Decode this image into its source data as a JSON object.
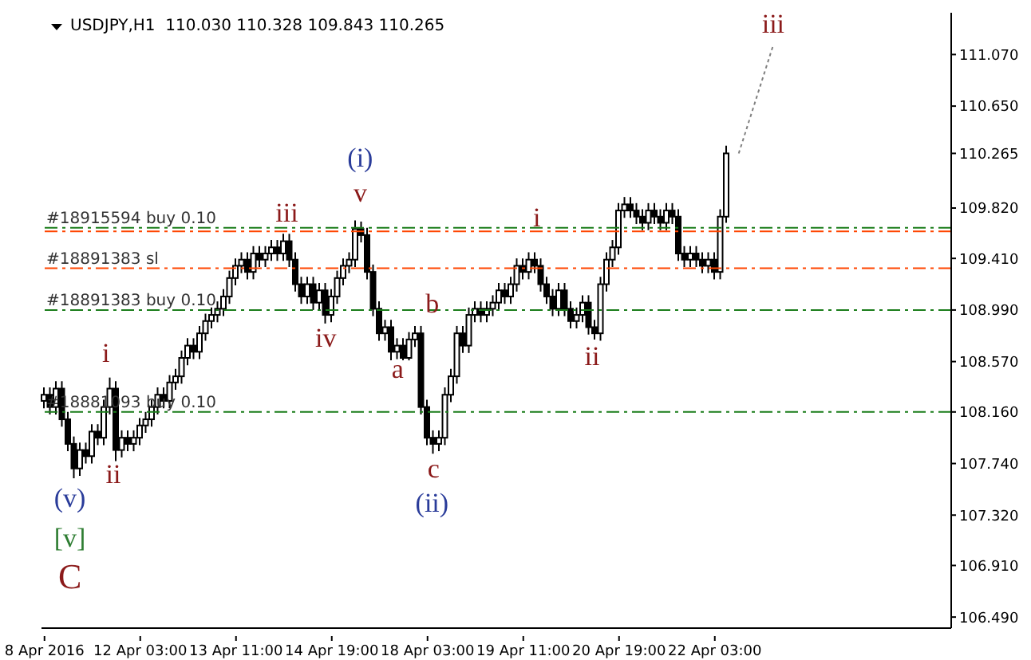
{
  "chart_data": {
    "type": "candlestick",
    "title": "USDJPY,H1  110.030 110.328 109.843 110.265",
    "color": "#000000",
    "categories": [
      "8 Apr 2016",
      null,
      null,
      null,
      null,
      null,
      null,
      null,
      null,
      null,
      null,
      null,
      null,
      null,
      null,
      null,
      "12 Apr 03:00",
      null,
      null,
      null,
      null,
      null,
      null,
      null,
      null,
      null,
      null,
      null,
      null,
      null,
      null,
      null,
      "13 Apr 11:00",
      null,
      null,
      null,
      null,
      null,
      null,
      null,
      null,
      null,
      null,
      null,
      null,
      null,
      null,
      null,
      "14 Apr 19:00",
      null,
      null,
      null,
      null,
      null,
      null,
      null,
      null,
      null,
      null,
      null,
      null,
      null,
      null,
      null,
      "18 Apr 03:00",
      null,
      null,
      null,
      null,
      null,
      null,
      null,
      null,
      null,
      null,
      null,
      null,
      null,
      null,
      null,
      "19 Apr 11:00",
      null,
      null,
      null,
      null,
      null,
      null,
      null,
      null,
      null,
      null,
      null,
      null,
      null,
      null,
      null,
      "20 Apr 19:00",
      null,
      null,
      null,
      null,
      null,
      null,
      null,
      null,
      null,
      null,
      null,
      null,
      null,
      null,
      null,
      "22 Apr 03:00",
      null,
      null,
      null,
      null,
      null,
      null,
      null,
      null,
      null,
      null,
      null,
      null,
      null,
      null,
      null,
      null,
      null,
      null,
      null,
      null,
      null,
      null,
      null,
      null,
      null,
      null,
      null,
      null,
      null,
      null,
      null,
      null,
      null,
      null,
      null,
      null,
      null,
      null,
      null
    ],
    "ohlc": [
      [
        108.25,
        108.36,
        108.19,
        108.3
      ],
      [
        108.3,
        108.36,
        108.14,
        108.2
      ],
      [
        108.2,
        108.41,
        108.14,
        108.35
      ],
      [
        108.35,
        108.41,
        108.04,
        108.1
      ],
      [
        108.1,
        108.16,
        107.84,
        107.9
      ],
      [
        107.9,
        107.96,
        107.62,
        107.7
      ],
      [
        107.7,
        107.91,
        107.64,
        107.85
      ],
      [
        107.85,
        107.91,
        107.74,
        107.8
      ],
      [
        107.8,
        108.06,
        107.74,
        108.0
      ],
      [
        108.0,
        108.06,
        107.89,
        107.95
      ],
      [
        107.95,
        108.26,
        107.89,
        108.2
      ],
      [
        108.2,
        108.44,
        108.14,
        108.35
      ],
      [
        108.35,
        108.41,
        107.76,
        107.85
      ],
      [
        107.85,
        108.01,
        107.79,
        107.95
      ],
      [
        107.95,
        108.01,
        107.84,
        107.9
      ],
      [
        107.9,
        108.01,
        107.84,
        107.95
      ],
      [
        107.95,
        108.11,
        107.89,
        108.05
      ],
      [
        108.05,
        108.16,
        107.99,
        108.1
      ],
      [
        108.1,
        108.26,
        108.04,
        108.2
      ],
      [
        108.2,
        108.36,
        108.14,
        108.3
      ],
      [
        108.3,
        108.36,
        108.19,
        108.25
      ],
      [
        108.25,
        108.46,
        108.19,
        108.4
      ],
      [
        108.4,
        108.51,
        108.34,
        108.45
      ],
      [
        108.45,
        108.66,
        108.39,
        108.6
      ],
      [
        108.6,
        108.76,
        108.54,
        108.7
      ],
      [
        108.7,
        108.76,
        108.59,
        108.65
      ],
      [
        108.65,
        108.86,
        108.59,
        108.8
      ],
      [
        108.8,
        108.96,
        108.74,
        108.9
      ],
      [
        108.9,
        109.01,
        108.84,
        108.95
      ],
      [
        108.95,
        109.06,
        108.89,
        109.0
      ],
      [
        109.0,
        109.16,
        108.94,
        109.1
      ],
      [
        109.1,
        109.31,
        109.04,
        109.25
      ],
      [
        109.25,
        109.41,
        109.19,
        109.35
      ],
      [
        109.35,
        109.46,
        109.29,
        109.4
      ],
      [
        109.4,
        109.46,
        109.24,
        109.3
      ],
      [
        109.3,
        109.51,
        109.24,
        109.45
      ],
      [
        109.45,
        109.51,
        109.34,
        109.4
      ],
      [
        109.4,
        109.51,
        109.34,
        109.45
      ],
      [
        109.45,
        109.56,
        109.39,
        109.5
      ],
      [
        109.5,
        109.56,
        109.39,
        109.45
      ],
      [
        109.45,
        109.61,
        109.39,
        109.55
      ],
      [
        109.55,
        109.61,
        109.34,
        109.4
      ],
      [
        109.4,
        109.46,
        109.14,
        109.2
      ],
      [
        109.2,
        109.26,
        109.04,
        109.1
      ],
      [
        109.1,
        109.26,
        109.04,
        109.2
      ],
      [
        109.2,
        109.26,
        108.99,
        109.05
      ],
      [
        109.05,
        109.21,
        108.99,
        109.15
      ],
      [
        109.15,
        109.21,
        108.88,
        108.95
      ],
      [
        108.95,
        109.16,
        108.89,
        109.1
      ],
      [
        109.1,
        109.31,
        109.04,
        109.25
      ],
      [
        109.25,
        109.41,
        109.19,
        109.35
      ],
      [
        109.35,
        109.46,
        109.29,
        109.4
      ],
      [
        109.4,
        109.72,
        109.34,
        109.65
      ],
      [
        109.65,
        109.71,
        109.54,
        109.6
      ],
      [
        109.6,
        109.66,
        109.24,
        109.3
      ],
      [
        109.3,
        109.36,
        108.94,
        109.0
      ],
      [
        109.0,
        109.06,
        108.74,
        108.8
      ],
      [
        108.8,
        108.91,
        108.74,
        108.85
      ],
      [
        108.85,
        108.91,
        108.58,
        108.65
      ],
      [
        108.65,
        108.76,
        108.59,
        108.7
      ],
      [
        108.7,
        108.76,
        108.58,
        108.6
      ],
      [
        108.6,
        108.81,
        108.58,
        108.75
      ],
      [
        108.75,
        108.86,
        108.69,
        108.8
      ],
      [
        108.8,
        108.86,
        108.14,
        108.2
      ],
      [
        108.2,
        108.26,
        107.89,
        107.95
      ],
      [
        107.95,
        108.01,
        107.82,
        107.9
      ],
      [
        107.9,
        108.01,
        107.84,
        107.95
      ],
      [
        107.95,
        108.36,
        107.89,
        108.3
      ],
      [
        108.3,
        108.51,
        108.24,
        108.45
      ],
      [
        108.45,
        108.86,
        108.39,
        108.8
      ],
      [
        108.8,
        108.86,
        108.64,
        108.7
      ],
      [
        108.7,
        109.01,
        108.64,
        108.95
      ],
      [
        108.95,
        109.06,
        108.89,
        109.0
      ],
      [
        109.0,
        109.06,
        108.89,
        108.95
      ],
      [
        108.95,
        109.06,
        108.89,
        109.0
      ],
      [
        109.0,
        109.11,
        108.94,
        109.05
      ],
      [
        109.05,
        109.21,
        108.99,
        109.15
      ],
      [
        109.15,
        109.21,
        109.04,
        109.1
      ],
      [
        109.1,
        109.26,
        109.04,
        109.2
      ],
      [
        109.2,
        109.41,
        109.14,
        109.35
      ],
      [
        109.35,
        109.41,
        109.24,
        109.3
      ],
      [
        109.3,
        109.46,
        109.24,
        109.4
      ],
      [
        109.4,
        109.46,
        109.29,
        109.35
      ],
      [
        109.35,
        109.41,
        109.14,
        109.2
      ],
      [
        109.2,
        109.26,
        109.04,
        109.1
      ],
      [
        109.1,
        109.16,
        108.94,
        109.0
      ],
      [
        109.0,
        109.21,
        108.94,
        109.15
      ],
      [
        109.15,
        109.21,
        108.94,
        109.0
      ],
      [
        109.0,
        109.06,
        108.84,
        108.9
      ],
      [
        108.9,
        109.01,
        108.84,
        108.95
      ],
      [
        108.95,
        109.11,
        108.89,
        109.05
      ],
      [
        109.05,
        109.11,
        108.79,
        108.85
      ],
      [
        108.85,
        108.91,
        108.75,
        108.8
      ],
      [
        108.8,
        109.26,
        108.74,
        109.2
      ],
      [
        109.2,
        109.46,
        109.14,
        109.4
      ],
      [
        109.4,
        109.56,
        109.34,
        109.5
      ],
      [
        109.5,
        109.86,
        109.44,
        109.8
      ],
      [
        109.8,
        109.91,
        109.74,
        109.85
      ],
      [
        109.85,
        109.91,
        109.74,
        109.8
      ],
      [
        109.8,
        109.86,
        109.69,
        109.75
      ],
      [
        109.75,
        109.81,
        109.64,
        109.7
      ],
      [
        109.7,
        109.86,
        109.64,
        109.8
      ],
      [
        109.8,
        109.86,
        109.69,
        109.75
      ],
      [
        109.75,
        109.81,
        109.64,
        109.7
      ],
      [
        109.7,
        109.86,
        109.64,
        109.8
      ],
      [
        109.8,
        109.86,
        109.69,
        109.75
      ],
      [
        109.75,
        109.81,
        109.39,
        109.45
      ],
      [
        109.45,
        109.51,
        109.34,
        109.4
      ],
      [
        109.4,
        109.51,
        109.34,
        109.45
      ],
      [
        109.45,
        109.51,
        109.34,
        109.4
      ],
      [
        109.4,
        109.46,
        109.29,
        109.35
      ],
      [
        109.35,
        109.46,
        109.29,
        109.4
      ],
      [
        109.4,
        109.46,
        109.24,
        109.3
      ],
      [
        109.3,
        109.81,
        109.24,
        109.75
      ],
      [
        109.75,
        110.328,
        109.7,
        110.265
      ],
      null,
      null,
      null,
      null,
      null,
      null,
      null,
      null,
      null,
      null,
      null,
      null,
      null,
      null,
      null,
      null,
      null,
      null,
      null,
      null,
      null,
      null,
      null,
      null,
      null,
      null,
      null,
      null,
      null,
      null,
      null,
      null,
      null,
      null,
      null,
      null,
      null
    ],
    "ylim": [
      106.4,
      111.41
    ],
    "yticks": [
      {
        "value": 106.49,
        "label": "106.490"
      },
      {
        "value": 106.91,
        "label": "106.910"
      },
      {
        "value": 107.32,
        "label": "107.320"
      },
      {
        "value": 107.74,
        "label": "107.740"
      },
      {
        "value": 108.16,
        "label": "108.160"
      },
      {
        "value": 108.57,
        "label": "108.570"
      },
      {
        "value": 108.99,
        "label": "108.990"
      },
      {
        "value": 109.41,
        "label": "109.410"
      },
      {
        "value": 109.82,
        "label": "109.820"
      },
      110.265,
      {
        "value": 110.65,
        "label": "110.650"
      },
      {
        "value": 111.07,
        "label": "111.070"
      }
    ],
    "ref_lines": [
      {
        "axis": "y",
        "value": 109.66,
        "label": "#18915594 buy 0.10",
        "color": "#1b7d1b",
        "line_style": "dashed"
      },
      {
        "axis": "y",
        "value": 109.63,
        "color": "#ff4500",
        "line_style": "dashed"
      },
      {
        "axis": "y",
        "value": 109.33,
        "label": "#18891383 sl",
        "color": "#ff4500",
        "line_style": "dashed"
      },
      {
        "axis": "y",
        "value": 108.99,
        "label": "#18891383 buy 0.10",
        "color": "#1b7d1b",
        "line_style": "dashed"
      },
      {
        "axis": "y",
        "value": 108.16,
        "label": "#18881093 buy 0.10",
        "color": "#1b7d1b",
        "line_style": "dashed"
      }
    ],
    "annotations": [
      "iii",
      "(i)",
      "v",
      "iii",
      "i",
      "iv",
      "b",
      "a",
      "c",
      "(ii)",
      "ii",
      "i",
      "ii",
      "(v)",
      "[v]",
      "C"
    ]
  }
}
